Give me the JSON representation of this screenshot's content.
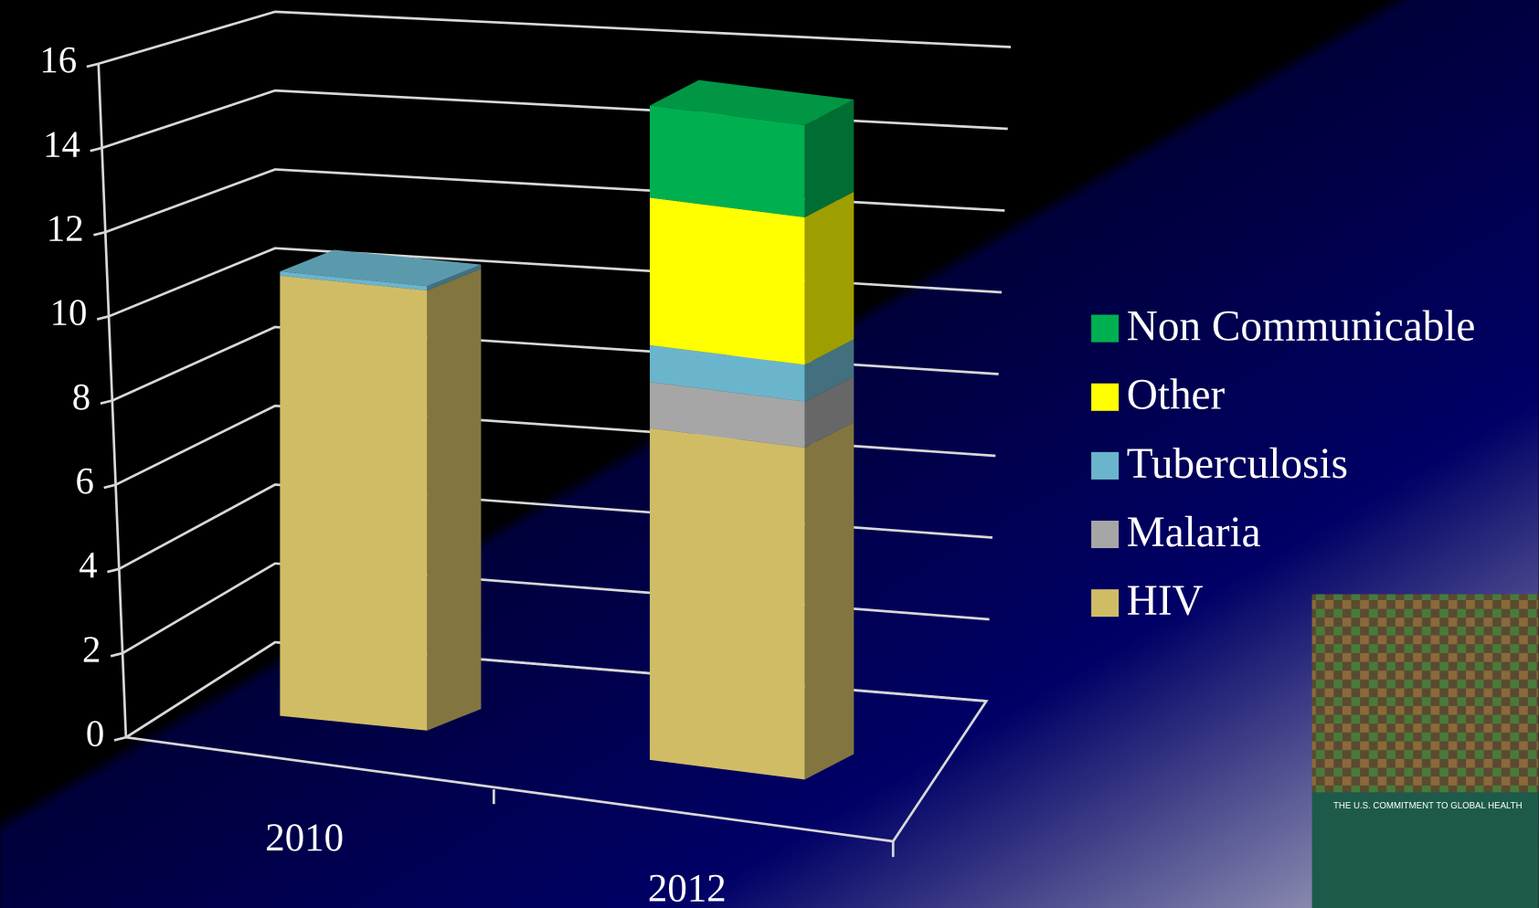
{
  "chart_data": {
    "type": "bar3d_stacked",
    "categories": [
      "2010",
      "2012"
    ],
    "series": [
      {
        "name": "HIV",
        "color": "#d1bc66",
        "values": [
          10.2,
          7.2
        ]
      },
      {
        "name": "Malaria",
        "color": "#a6a6a6",
        "values": [
          0,
          1.0
        ]
      },
      {
        "name": "Tuberculosis",
        "color": "#6bb5cc",
        "values": [
          0.1,
          0.8
        ]
      },
      {
        "name": "Other",
        "color": "#ffff00",
        "values": [
          0,
          3.2
        ]
      },
      {
        "name": "Non Communicable",
        "color": "#00b050",
        "values": [
          0,
          2.0
        ]
      }
    ],
    "ylim": [
      0,
      16
    ],
    "yticks": [
      0,
      2,
      4,
      6,
      8,
      10,
      12,
      14,
      16
    ],
    "grid": true,
    "legend": "right",
    "cover_title": "THE U.S. COMMITMENT TO GLOBAL HEALTH"
  }
}
